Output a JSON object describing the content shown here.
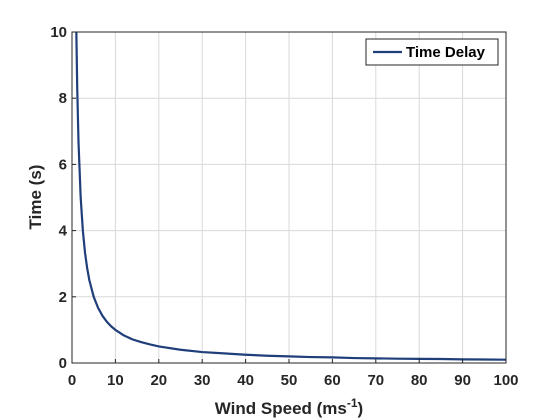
{
  "chart_data": {
    "type": "line",
    "title": "",
    "xlabel": "Wind Speed (ms",
    "xlabel_sup": "-1",
    "xlabel_suffix": ")",
    "ylabel": "Time (s)",
    "xlim": [
      0,
      100
    ],
    "ylim": [
      0,
      10
    ],
    "xticks": [
      "0",
      "10",
      "20",
      "30",
      "40",
      "50",
      "60",
      "70",
      "80",
      "90",
      "100"
    ],
    "yticks": [
      "0",
      "2",
      "4",
      "6",
      "8",
      "10"
    ],
    "grid": true,
    "legend_position": "top-right",
    "series": [
      {
        "name": "Time Delay",
        "color": "#1f3e7a",
        "x": [
          1,
          1.2,
          1.5,
          2,
          2.5,
          3,
          3.5,
          4,
          5,
          6,
          7,
          8,
          9,
          10,
          12,
          14,
          16,
          18,
          20,
          25,
          30,
          35,
          40,
          45,
          50,
          55,
          60,
          65,
          70,
          75,
          80,
          85,
          90,
          95,
          100
        ],
        "y": [
          10,
          8.33,
          6.67,
          5,
          4,
          3.33,
          2.86,
          2.5,
          2,
          1.67,
          1.43,
          1.25,
          1.11,
          1,
          0.83,
          0.71,
          0.63,
          0.56,
          0.5,
          0.4,
          0.33,
          0.29,
          0.25,
          0.22,
          0.2,
          0.18,
          0.17,
          0.15,
          0.14,
          0.13,
          0.125,
          0.12,
          0.11,
          0.105,
          0.1
        ]
      }
    ]
  }
}
